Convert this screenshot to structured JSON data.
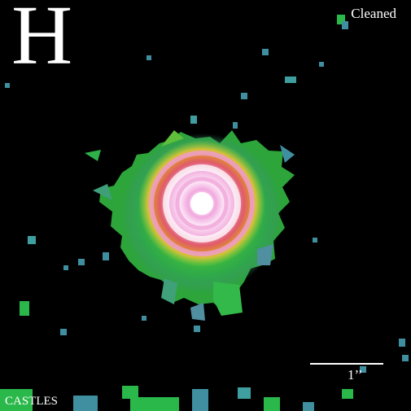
{
  "image": {
    "band_letter": "H",
    "processing_label": "Cleaned",
    "scale_label": "1’’",
    "survey_label": "CASTLES"
  },
  "colors": {
    "background": "#000000",
    "text": "#ffffff",
    "colormap_low": "#5a8fa3",
    "colormap_mid": "#2bc23a",
    "colormap_high": "#e03c3c",
    "colormap_peak": "#ffffff"
  }
}
